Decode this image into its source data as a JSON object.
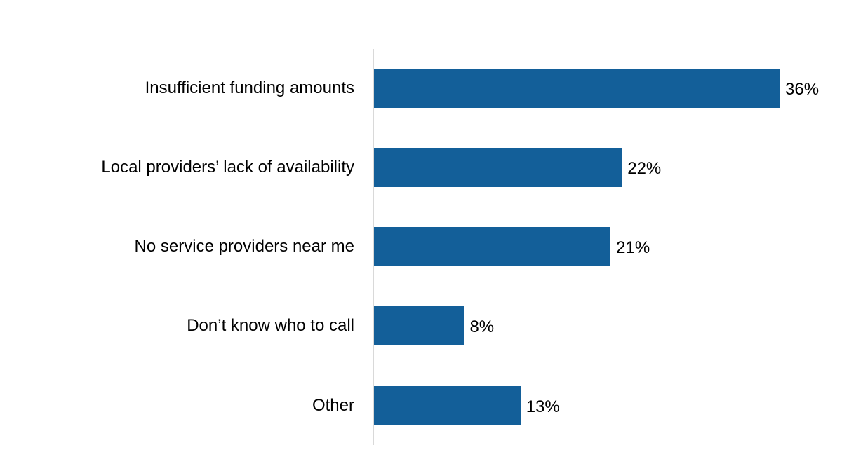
{
  "chart_data": {
    "type": "bar",
    "orientation": "horizontal",
    "title": "",
    "xlabel": "",
    "ylabel": "",
    "categories": [
      "Insufficient funding amounts",
      "Local providers’ lack of availability",
      "No service providers near me",
      "Don’t know who to call",
      "Other"
    ],
    "values": [
      36,
      22,
      21,
      8,
      13
    ],
    "value_labels": [
      "36%",
      "22%",
      "21%",
      "8%",
      "13%"
    ],
    "unit": "%",
    "xlim": [
      0,
      36
    ],
    "grid": false,
    "legend": null,
    "bar_color": "#135f99"
  }
}
